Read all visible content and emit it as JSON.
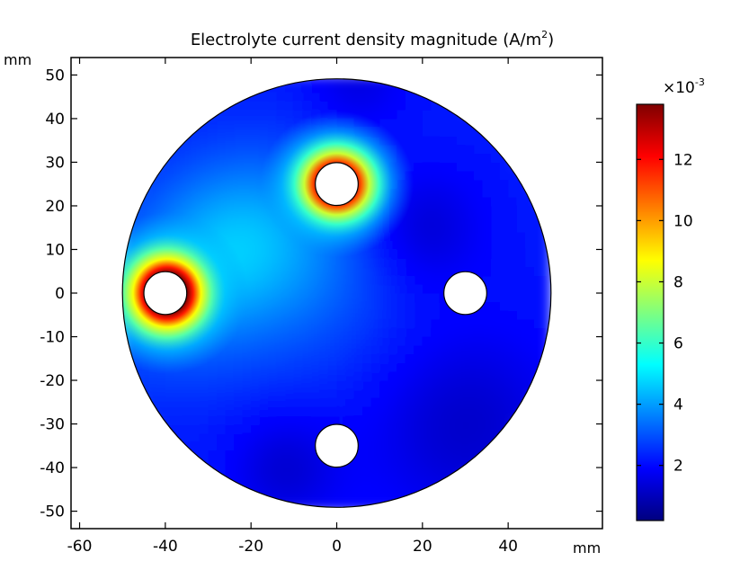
{
  "chart_data": {
    "type": "heatmap",
    "title_main": "Electrolyte current density magnitude (A/m",
    "title_sup": "2",
    "title_end": ")",
    "x_unit": "mm",
    "y_unit": "mm",
    "xlim": [
      -62,
      62
    ],
    "ylim": [
      -54,
      54
    ],
    "x_ticks": [
      -60,
      -40,
      -20,
      0,
      20,
      40
    ],
    "y_ticks": [
      -50,
      -40,
      -30,
      -20,
      -10,
      0,
      10,
      20,
      30,
      40,
      50
    ],
    "domain": {
      "shape": "disk",
      "center": [
        0,
        0
      ],
      "radius": 50
    },
    "holes": [
      {
        "center": [
          -40,
          0
        ],
        "radius": 5
      },
      {
        "center": [
          0,
          25
        ],
        "radius": 5
      },
      {
        "center": [
          30,
          0
        ],
        "radius": 5
      },
      {
        "center": [
          0,
          -35
        ],
        "radius": 5
      }
    ],
    "hotspots": [
      {
        "center": [
          -40,
          0
        ],
        "peak": 0.0138,
        "near_hole": true
      },
      {
        "center": [
          0,
          25
        ],
        "peak": 0.0128,
        "near_hole": true
      }
    ],
    "colorbar": {
      "multiplier_base": "×10",
      "multiplier_exp": "-3",
      "range": [
        0.2,
        13.8
      ],
      "ticks": [
        2,
        4,
        6,
        8,
        10,
        12
      ],
      "colormap": "rainbow-jet",
      "colors": [
        "#00007f",
        "#0000ff",
        "#007fff",
        "#00ffff",
        "#7fff7f",
        "#ffff00",
        "#ff7f00",
        "#ff0000",
        "#7f0000"
      ]
    },
    "grid": false,
    "legend": "right"
  }
}
